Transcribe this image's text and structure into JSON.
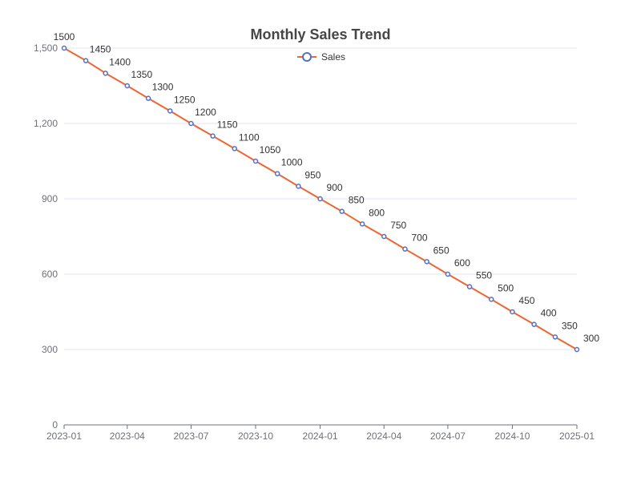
{
  "chart_data": {
    "type": "line",
    "title": "Monthly Sales Trend",
    "xlabel": "",
    "ylabel": "",
    "x": [
      "2023-01-01",
      "2023-02-01",
      "2023-03-01",
      "2023-04-01",
      "2023-05-01",
      "2023-06-01",
      "2023-07-01",
      "2023-08-01",
      "2023-09-01",
      "2023-10-01",
      "2023-11-01",
      "2023-12-01",
      "2024-01-01",
      "2024-02-01",
      "2024-03-01",
      "2024-04-01",
      "2024-05-01",
      "2024-06-01",
      "2024-07-01",
      "2024-08-01",
      "2024-09-01",
      "2024-10-01",
      "2024-11-01",
      "2024-12-01",
      "2025-01-01"
    ],
    "series": [
      {
        "name": "Sales",
        "values": [
          1500,
          1450,
          1400,
          1350,
          1300,
          1250,
          1200,
          1150,
          1100,
          1050,
          1000,
          950,
          900,
          850,
          800,
          750,
          700,
          650,
          600,
          550,
          500,
          450,
          400,
          350,
          300
        ],
        "data_labels": [
          "1500",
          "1450",
          "1400",
          "1350",
          "1300",
          "1250",
          "1200",
          "1150",
          "1100",
          "1050",
          "1000",
          "950",
          "900",
          "850",
          "800",
          "750",
          "700",
          "650",
          "600",
          "550",
          "500",
          "450",
          "400",
          "350",
          "300"
        ]
      }
    ],
    "x_ticks": [
      "2023-01",
      "2023-04",
      "2023-07",
      "2023-10",
      "2024-01",
      "2024-04",
      "2024-07",
      "2024-10",
      "2025-01"
    ],
    "y_ticks": [
      "0",
      "300",
      "600",
      "900",
      "1,200",
      "1,500"
    ],
    "y_tick_values": [
      0,
      300,
      600,
      900,
      1200,
      1500
    ],
    "ylim": [
      0,
      1500
    ],
    "xlim": [
      "2023-01-01",
      "2025-01-01"
    ],
    "grid": true,
    "legend_position": "top-center",
    "colors": {
      "line": "#ee6633",
      "marker_stroke": "#5470c6",
      "marker_fill": "#ffffff",
      "grid": "#e0e6f1",
      "axis": "#6e7079"
    }
  }
}
